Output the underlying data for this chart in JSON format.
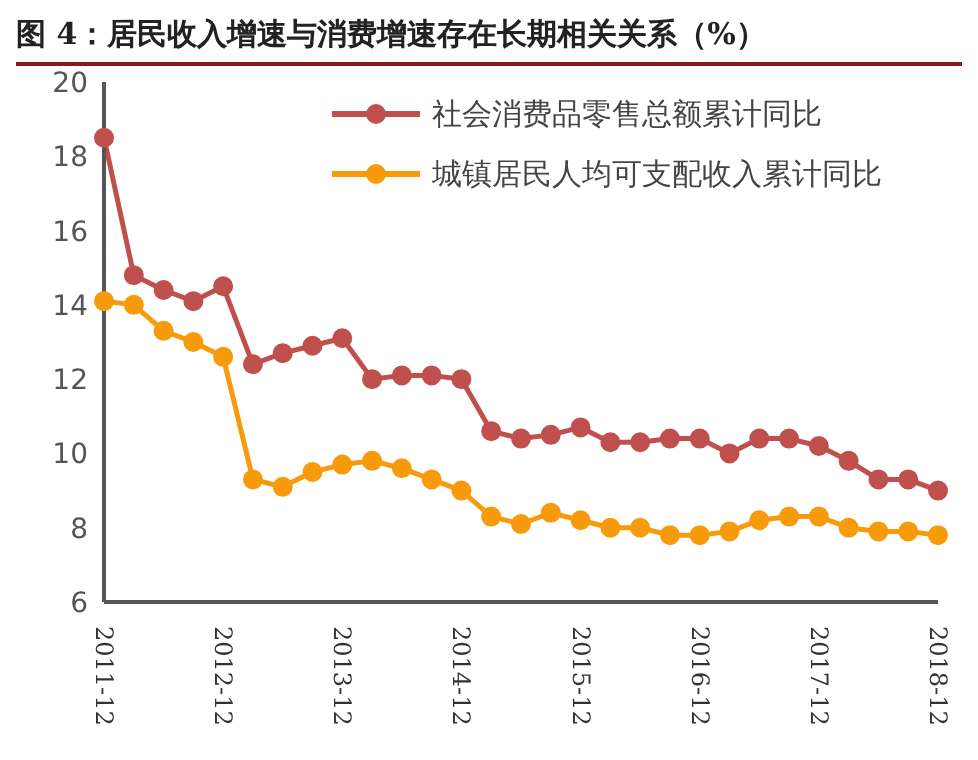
{
  "chart_data": {
    "type": "line",
    "title": "图 4：居民收入增速与消费增速存在长期相关关系（%）",
    "categories": [
      "2011-12",
      null,
      null,
      null,
      "2012-12",
      null,
      null,
      null,
      "2013-12",
      null,
      null,
      null,
      "2014-12",
      null,
      null,
      null,
      "2015-12",
      null,
      null,
      null,
      "2016-12",
      null,
      null,
      null,
      "2017-12",
      null,
      null,
      null,
      "2018-12"
    ],
    "series": [
      {
        "name": "社会消费品零售总额累计同比",
        "color": "#c0504d",
        "values": [
          18.5,
          14.8,
          14.4,
          14.1,
          14.5,
          12.4,
          12.7,
          12.9,
          13.1,
          12.0,
          12.1,
          12.1,
          12.0,
          10.6,
          10.4,
          10.5,
          10.7,
          10.3,
          10.3,
          10.4,
          10.4,
          10.0,
          10.4,
          10.4,
          10.2,
          9.8,
          9.3,
          9.3,
          9.0
        ]
      },
      {
        "name": "城镇居民人均可支配收入累计同比",
        "color": "#f79b0c",
        "values": [
          14.1,
          14.0,
          13.3,
          13.0,
          12.6,
          9.3,
          9.1,
          9.5,
          9.7,
          9.8,
          9.6,
          9.3,
          9.0,
          8.3,
          8.1,
          8.4,
          8.2,
          8.0,
          8.0,
          7.8,
          7.8,
          7.9,
          8.2,
          8.3,
          8.3,
          8.0,
          7.9,
          7.9,
          7.8
        ]
      }
    ],
    "ylim": [
      6,
      20
    ],
    "yticks": [
      6,
      8,
      10,
      12,
      14,
      16,
      18,
      20
    ],
    "grid": false,
    "legend": "top right",
    "marker": "circle",
    "line_style": "solid"
  }
}
